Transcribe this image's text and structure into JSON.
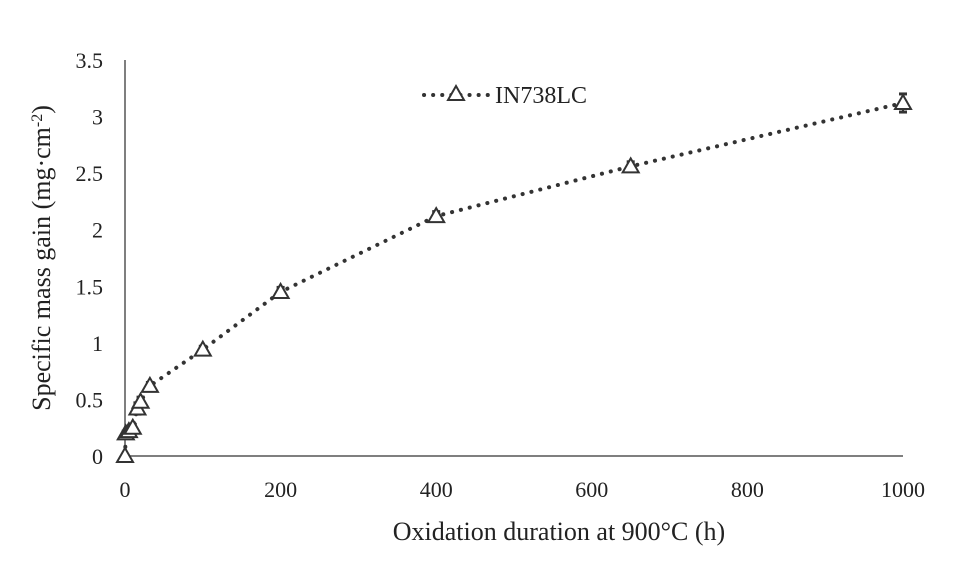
{
  "chart_data": {
    "type": "scatter",
    "xlabel": "Oxidation duration at 900°C (h)",
    "ylabel_main": "Specific mass gain (mg·cm",
    "ylabel_sup": "-2",
    "ylabel_close": ")",
    "xlim": [
      0,
      1000
    ],
    "ylim": [
      0,
      3.5
    ],
    "x_ticks": [
      "0",
      "200",
      "400",
      "600",
      "800",
      "1000"
    ],
    "y_ticks": [
      "0",
      "0.5",
      "1",
      "1.5",
      "2",
      "2.5",
      "3",
      "3.5"
    ],
    "grid": false,
    "legend_position": "top-center",
    "series": [
      {
        "name": "IN738LC",
        "line_style": "dotted",
        "marker": "open-triangle",
        "color": "#333333",
        "points": [
          {
            "x": 0,
            "y": 0
          },
          {
            "x": 1,
            "y": 0.2
          },
          {
            "x": 5,
            "y": 0.22
          },
          {
            "x": 10,
            "y": 0.25
          },
          {
            "x": 16,
            "y": 0.42
          },
          {
            "x": 20,
            "y": 0.48
          },
          {
            "x": 32,
            "y": 0.62
          },
          {
            "x": 100,
            "y": 0.94
          },
          {
            "x": 200,
            "y": 1.45
          },
          {
            "x": 400,
            "y": 2.12
          },
          {
            "x": 650,
            "y": 2.56
          },
          {
            "x": 1000,
            "y": 3.12
          }
        ],
        "errors": [
          0,
          0.02,
          0.03,
          0.03,
          0.05,
          0.04,
          0.03,
          0.03,
          0.04,
          0.04,
          0.04,
          0.08
        ]
      }
    ]
  }
}
